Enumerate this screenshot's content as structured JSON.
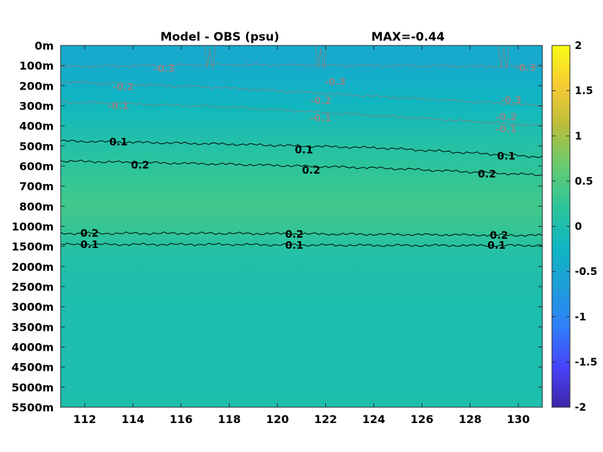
{
  "title_left": "Model - OBS (psu)",
  "title_right": "MAX=-0.44",
  "chart_data": {
    "type": "heatmap",
    "x_ticks": [
      112,
      114,
      116,
      118,
      120,
      122,
      124,
      126,
      128,
      130
    ],
    "xlim": [
      111,
      131
    ],
    "depth_labels": [
      "0m",
      "100m",
      "200m",
      "300m",
      "400m",
      "500m",
      "600m",
      "700m",
      "800m",
      "1000m",
      "1500m",
      "2000m",
      "2500m",
      "3000m",
      "3500m",
      "4000m",
      "4500m",
      "5000m",
      "5500m"
    ],
    "field_profile": [
      -0.45,
      -0.42,
      -0.33,
      -0.2,
      -0.05,
      0.1,
      0.2,
      0.3,
      0.38,
      0.3,
      0.12,
      0.05,
      0.02,
      0.0,
      -0.02,
      -0.02,
      0.0,
      0.0,
      0.02
    ],
    "colorbar": {
      "limits": [
        -2,
        2
      ],
      "ticks": [
        "2",
        "1.5",
        "1",
        "0.5",
        "0",
        "-0.5",
        "-1",
        "-1.5",
        "-2"
      ],
      "colors": [
        "#3e26a8",
        "#4743f9",
        "#2f7ffa",
        "#1e9ed9",
        "#0fb6c1",
        "#2dc59a",
        "#67cb70",
        "#b9bd3b",
        "#f7cb34",
        "#f9fb15"
      ]
    },
    "contours": [
      {
        "level": "-0.3",
        "color": "#7f7f7f",
        "rows": [
          1.05,
          0.95,
          1.0,
          1.05
        ],
        "labels": [
          {
            "x": 115.3,
            "row": 1.15,
            "text": "-0.3"
          },
          {
            "x": 122.4,
            "row": 1.8,
            "text": "-0.3"
          },
          {
            "x": 130.3,
            "row": 1.1,
            "text": "-0.3"
          },
          {
            "x": 129.7,
            "row": 2.7,
            "text": "-0.3"
          }
        ]
      },
      {
        "level": "-0.2",
        "color": "#7f7f7f",
        "rows": [
          1.8,
          2.1,
          2.55,
          3.0
        ],
        "labels": [
          {
            "x": 113.6,
            "row": 2.05,
            "text": "-0.2"
          },
          {
            "x": 121.8,
            "row": 2.75,
            "text": "-0.2"
          },
          {
            "x": 129.5,
            "row": 3.55,
            "text": "-0.2"
          }
        ]
      },
      {
        "level": "-0.1",
        "color": "#7f7f7f",
        "rows": [
          2.8,
          3.05,
          3.5,
          4.0
        ],
        "labels": [
          {
            "x": 113.4,
            "row": 3.0,
            "text": "-0.1"
          },
          {
            "x": 121.8,
            "row": 3.6,
            "text": "-0.1"
          },
          {
            "x": 129.5,
            "row": 4.15,
            "text": "-0.1"
          }
        ]
      },
      {
        "level": "0.1",
        "color": "#000000",
        "rows": [
          4.75,
          4.9,
          5.1,
          5.55
        ],
        "labels": [
          {
            "x": 113.4,
            "row": 4.8,
            "text": "0.1"
          },
          {
            "x": 121.1,
            "row": 5.2,
            "text": "0.1"
          },
          {
            "x": 129.5,
            "row": 5.5,
            "text": "0.1"
          }
        ]
      },
      {
        "level": "0.2",
        "color": "#000000",
        "rows": [
          5.75,
          5.9,
          6.1,
          6.45
        ],
        "labels": [
          {
            "x": 114.3,
            "row": 5.95,
            "text": "0.2"
          },
          {
            "x": 121.4,
            "row": 6.2,
            "text": "0.2"
          },
          {
            "x": 128.7,
            "row": 6.4,
            "text": "0.2"
          }
        ]
      },
      {
        "level": "0.2",
        "color": "#000000",
        "rows": [
          9.35,
          9.35,
          9.4,
          9.45
        ],
        "labels": [
          {
            "x": 112.2,
            "row": 9.35,
            "text": "0.2"
          },
          {
            "x": 120.7,
            "row": 9.4,
            "text": "0.2"
          },
          {
            "x": 129.2,
            "row": 9.45,
            "text": "0.2"
          }
        ]
      },
      {
        "level": "0.1",
        "color": "#000000",
        "rows": [
          9.9,
          9.9,
          9.95,
          9.95
        ],
        "labels": [
          {
            "x": 112.2,
            "row": 9.9,
            "text": "0.1"
          },
          {
            "x": 120.7,
            "row": 9.95,
            "text": "0.1"
          },
          {
            "x": 129.1,
            "row": 9.95,
            "text": "0.1"
          }
        ]
      }
    ]
  }
}
